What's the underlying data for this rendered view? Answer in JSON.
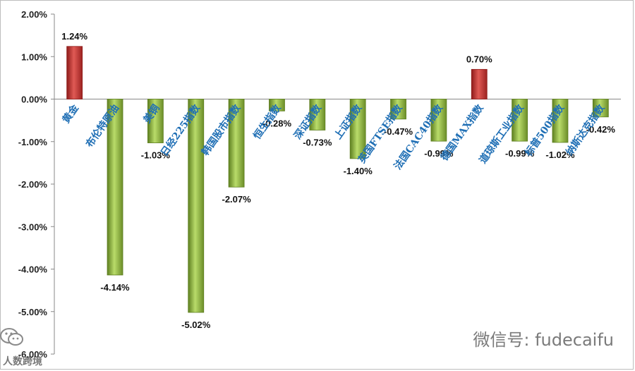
{
  "chart_data": {
    "type": "bar",
    "categories": [
      "黄金",
      "布伦特原油",
      "美铜",
      "日经225指数",
      "韩国股市指数",
      "恒生指数",
      "深证指数",
      "上证指数",
      "英国FTSE指数",
      "法国CAC40指数",
      "德国MAX指数",
      "道琼斯工业指数",
      "标普500指数",
      "纳斯达克指数"
    ],
    "values": [
      1.24,
      -4.14,
      -1.03,
      -5.02,
      -2.07,
      -0.28,
      -0.73,
      -1.4,
      -0.47,
      -0.99,
      0.7,
      -0.99,
      -1.02,
      -0.42
    ],
    "data_labels": [
      "1.24%",
      "-4.14%",
      "-1.03%",
      "-5.02%",
      "-2.07%",
      "-0.28%",
      "-0.73%",
      "-1.40%",
      "-0.47%",
      "-0.99%",
      "0.70%",
      "-0.99%",
      "-1.02%",
      "-0.42%"
    ],
    "ylim": [
      -6,
      2
    ],
    "y_ticks": [
      "2.00%",
      "1.00%",
      "0.00%",
      "-1.00%",
      "-2.00%",
      "-3.00%",
      "-4.00%",
      "-5.00%",
      "-6.00%"
    ],
    "y_tick_values": [
      2,
      1,
      0,
      -1,
      -2,
      -3,
      -4,
      -5,
      -6
    ],
    "grid": false,
    "legend": "none",
    "colors": {
      "positive": "#c0302e",
      "negative": "#8fb93a",
      "positive_dark": "#8e1b1a",
      "negative_dark": "#5e7f20",
      "label": "#1f6fb5"
    }
  },
  "watermarks": {
    "wechat": "微信号: fudecaifu",
    "corner": "人数跨境"
  }
}
